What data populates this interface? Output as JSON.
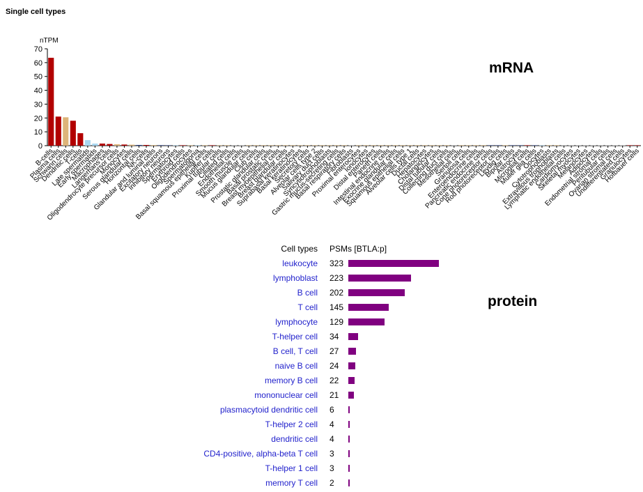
{
  "header": {
    "title": "Single cell types"
  },
  "labels": {
    "mrna": "mRNA",
    "protein": "protein"
  },
  "colors": {
    "dark_red": "#b20000",
    "tan": "#ddb479",
    "light_blue": "#a8d6f0",
    "dark_blue": "#2b3f84",
    "gray": "#bdbdbd",
    "protein_bar": "#800080",
    "link": "#2222cc"
  },
  "chart_data": [
    {
      "type": "bar",
      "ylabel": "nTPM",
      "ylim": [
        0,
        70
      ],
      "yticks": [
        0,
        10,
        20,
        30,
        40,
        50,
        60,
        70
      ],
      "categories": [
        "B-cells",
        "Plasma cells",
        "Schwann cells",
        "Dendritic cells",
        "T-cells",
        "Late spermatids",
        "Early spermatids",
        "Macrophages",
        "Langerhans cells",
        "Oligodendrocyte precursor cells",
        "Monocytes",
        "Serous glandular cells",
        "Horizontal cells",
        "NK-cells",
        "Glandular and luminal cells",
        "Excitatory neurons",
        "Inhibitory neurons",
        "Spermatocytes",
        "Erythroid cells",
        "Oligodendrocytes",
        "Spermatogonia",
        "Basal squamous epithelial cells",
        "Kupffer cells",
        "Proximal tubular cells",
        "Ciliated cells",
        "Endothelial cells",
        "Smooth muscle cells",
        "Mucus glandular cells",
        "Club cells",
        "Prostatic glandular cells",
        "Basal prostatic cells",
        "Breast myoepithelial cells",
        "Breast glandular cells",
        "Suprabasal keratinocytes",
        "Basal keratinocytes",
        "Secretory cells",
        "Alveolar cells type 2",
        "Salivary duct cells",
        "Syncytiotrophoblasts",
        "Gastric mucus-secreting cells",
        "Basal respiratory cells",
        "Fibroblasts",
        "Proximal enterocytes",
        "Ionocytes",
        "Distal enterocytes",
        "Paneth cells",
        "Intestinal endocrine cells",
        "Exocrine glandular cells",
        "Squamous epithelial cells",
        "Alveolar cells type 1",
        "Ductal cells",
        "Hepatocytes",
        "Cholangiocytes",
        "Distal tubular cells",
        "Collecting duct cells",
        "Mesothelial cells",
        "Sertoli cells",
        "Granulosa cells",
        "Enteroendocrine cells",
        "Pancreatic endocrine cells",
        "Cone photoreceptor cells",
        "Rod photoreceptor cells",
        "Leydig cells",
        "Bipolar cells",
        "Astrocytes",
        "Microglial cells",
        "Muller glia cells",
        "Oocytes",
        "Cytotrophoblasts",
        "Extravillous trophoblasts",
        "Lymphatic endothelial cells",
        "Cardiomyocytes",
        "Skeletal myocytes",
        "Melanocytes",
        "Adipocytes",
        "Endometrial stromal cells",
        "Peritubular cells",
        "Ovarian stromal cells",
        "Undifferentiated cells",
        "Granulocytes",
        "Hofbauer cells"
      ],
      "values": [
        63.5,
        21,
        20.5,
        18,
        9,
        4,
        1.5,
        1.5,
        1.2,
        1.0,
        0.8,
        0.7,
        0.5,
        0.5,
        0.4,
        0.35,
        0.3,
        0.3,
        0.25,
        0.2,
        0.2,
        0.2,
        0.15,
        0.15,
        0.15,
        0.1,
        0.1,
        0.1,
        0.1,
        0.1,
        0.1,
        0.08,
        0.08,
        0.08,
        0.05,
        0.05,
        0.05,
        0.05,
        0.05,
        0.05,
        0.05,
        0.05,
        0.05,
        0.05,
        0.05,
        0.05,
        0.05,
        0.05,
        0.05,
        0.05,
        0.05,
        0.05,
        0.05,
        0.05,
        0.05,
        0.05,
        0.05,
        0.05,
        0.05,
        0.05,
        0.05,
        0.05,
        0.05,
        0.05,
        0.05,
        0.05,
        0.05,
        0.05,
        0.05,
        0.05,
        0.05,
        0.05,
        0.05,
        0.05,
        0.05,
        0.05,
        0.05,
        0.05,
        0.05,
        0.05,
        0.05
      ],
      "bar_colors": [
        "#b20000",
        "#b20000",
        "#ddb479",
        "#b20000",
        "#b20000",
        "#a8d6f0",
        "#a8d6f0",
        "#b20000",
        "#b20000",
        "#ddb479",
        "#b20000",
        "#ddb479",
        "#2b3f84",
        "#b20000",
        "#ddb479",
        "#2b3f84",
        "#2b3f84",
        "#a8d6f0",
        "#b20000",
        "#ddb479",
        "#a8d6f0",
        "#ddb479",
        "#b20000",
        "#ddb479",
        "#ddb479",
        "#bdbdbd",
        "#bdbdbd",
        "#ddb479",
        "#ddb479",
        "#ddb479",
        "#ddb479",
        "#ddb479",
        "#ddb479",
        "#ddb479",
        "#ddb479",
        "#ddb479",
        "#ddb479",
        "#ddb479",
        "#ddb479",
        "#ddb479",
        "#ddb479",
        "#bdbdbd",
        "#ddb479",
        "#ddb479",
        "#ddb479",
        "#ddb479",
        "#ddb479",
        "#ddb479",
        "#ddb479",
        "#ddb479",
        "#ddb479",
        "#ddb479",
        "#ddb479",
        "#ddb479",
        "#ddb479",
        "#bdbdbd",
        "#ddb479",
        "#ddb479",
        "#ddb479",
        "#ddb479",
        "#2b3f84",
        "#2b3f84",
        "#ddb479",
        "#2b3f84",
        "#2b3f84",
        "#b20000",
        "#2b3f84",
        "#a8d6f0",
        "#ddb479",
        "#ddb479",
        "#bdbdbd",
        "#bdbdbd",
        "#bdbdbd",
        "#bdbdbd",
        "#bdbdbd",
        "#bdbdbd",
        "#bdbdbd",
        "#bdbdbd",
        "#bdbdbd",
        "#b20000",
        "#b20000"
      ]
    },
    {
      "type": "bar",
      "orientation": "horizontal",
      "column_headers": {
        "name": "Cell types",
        "value": "PSMs",
        "value_note": "[BTLA:p]"
      },
      "xlim": [
        0,
        323
      ],
      "categories": [
        "leukocyte",
        "lymphoblast",
        "B cell",
        "T cell",
        "lymphocyte",
        "T-helper cell",
        "B cell, T cell",
        "naive B cell",
        "memory B cell",
        "mononuclear cell",
        "plasmacytoid dendritic cell",
        "T-helper 2 cell",
        "dendritic cell",
        "CD4-positive, alpha-beta T cell",
        "T-helper 1 cell",
        "memory T cell"
      ],
      "values": [
        323,
        223,
        202,
        145,
        129,
        34,
        27,
        24,
        22,
        21,
        6,
        4,
        4,
        3,
        3,
        2
      ]
    }
  ]
}
